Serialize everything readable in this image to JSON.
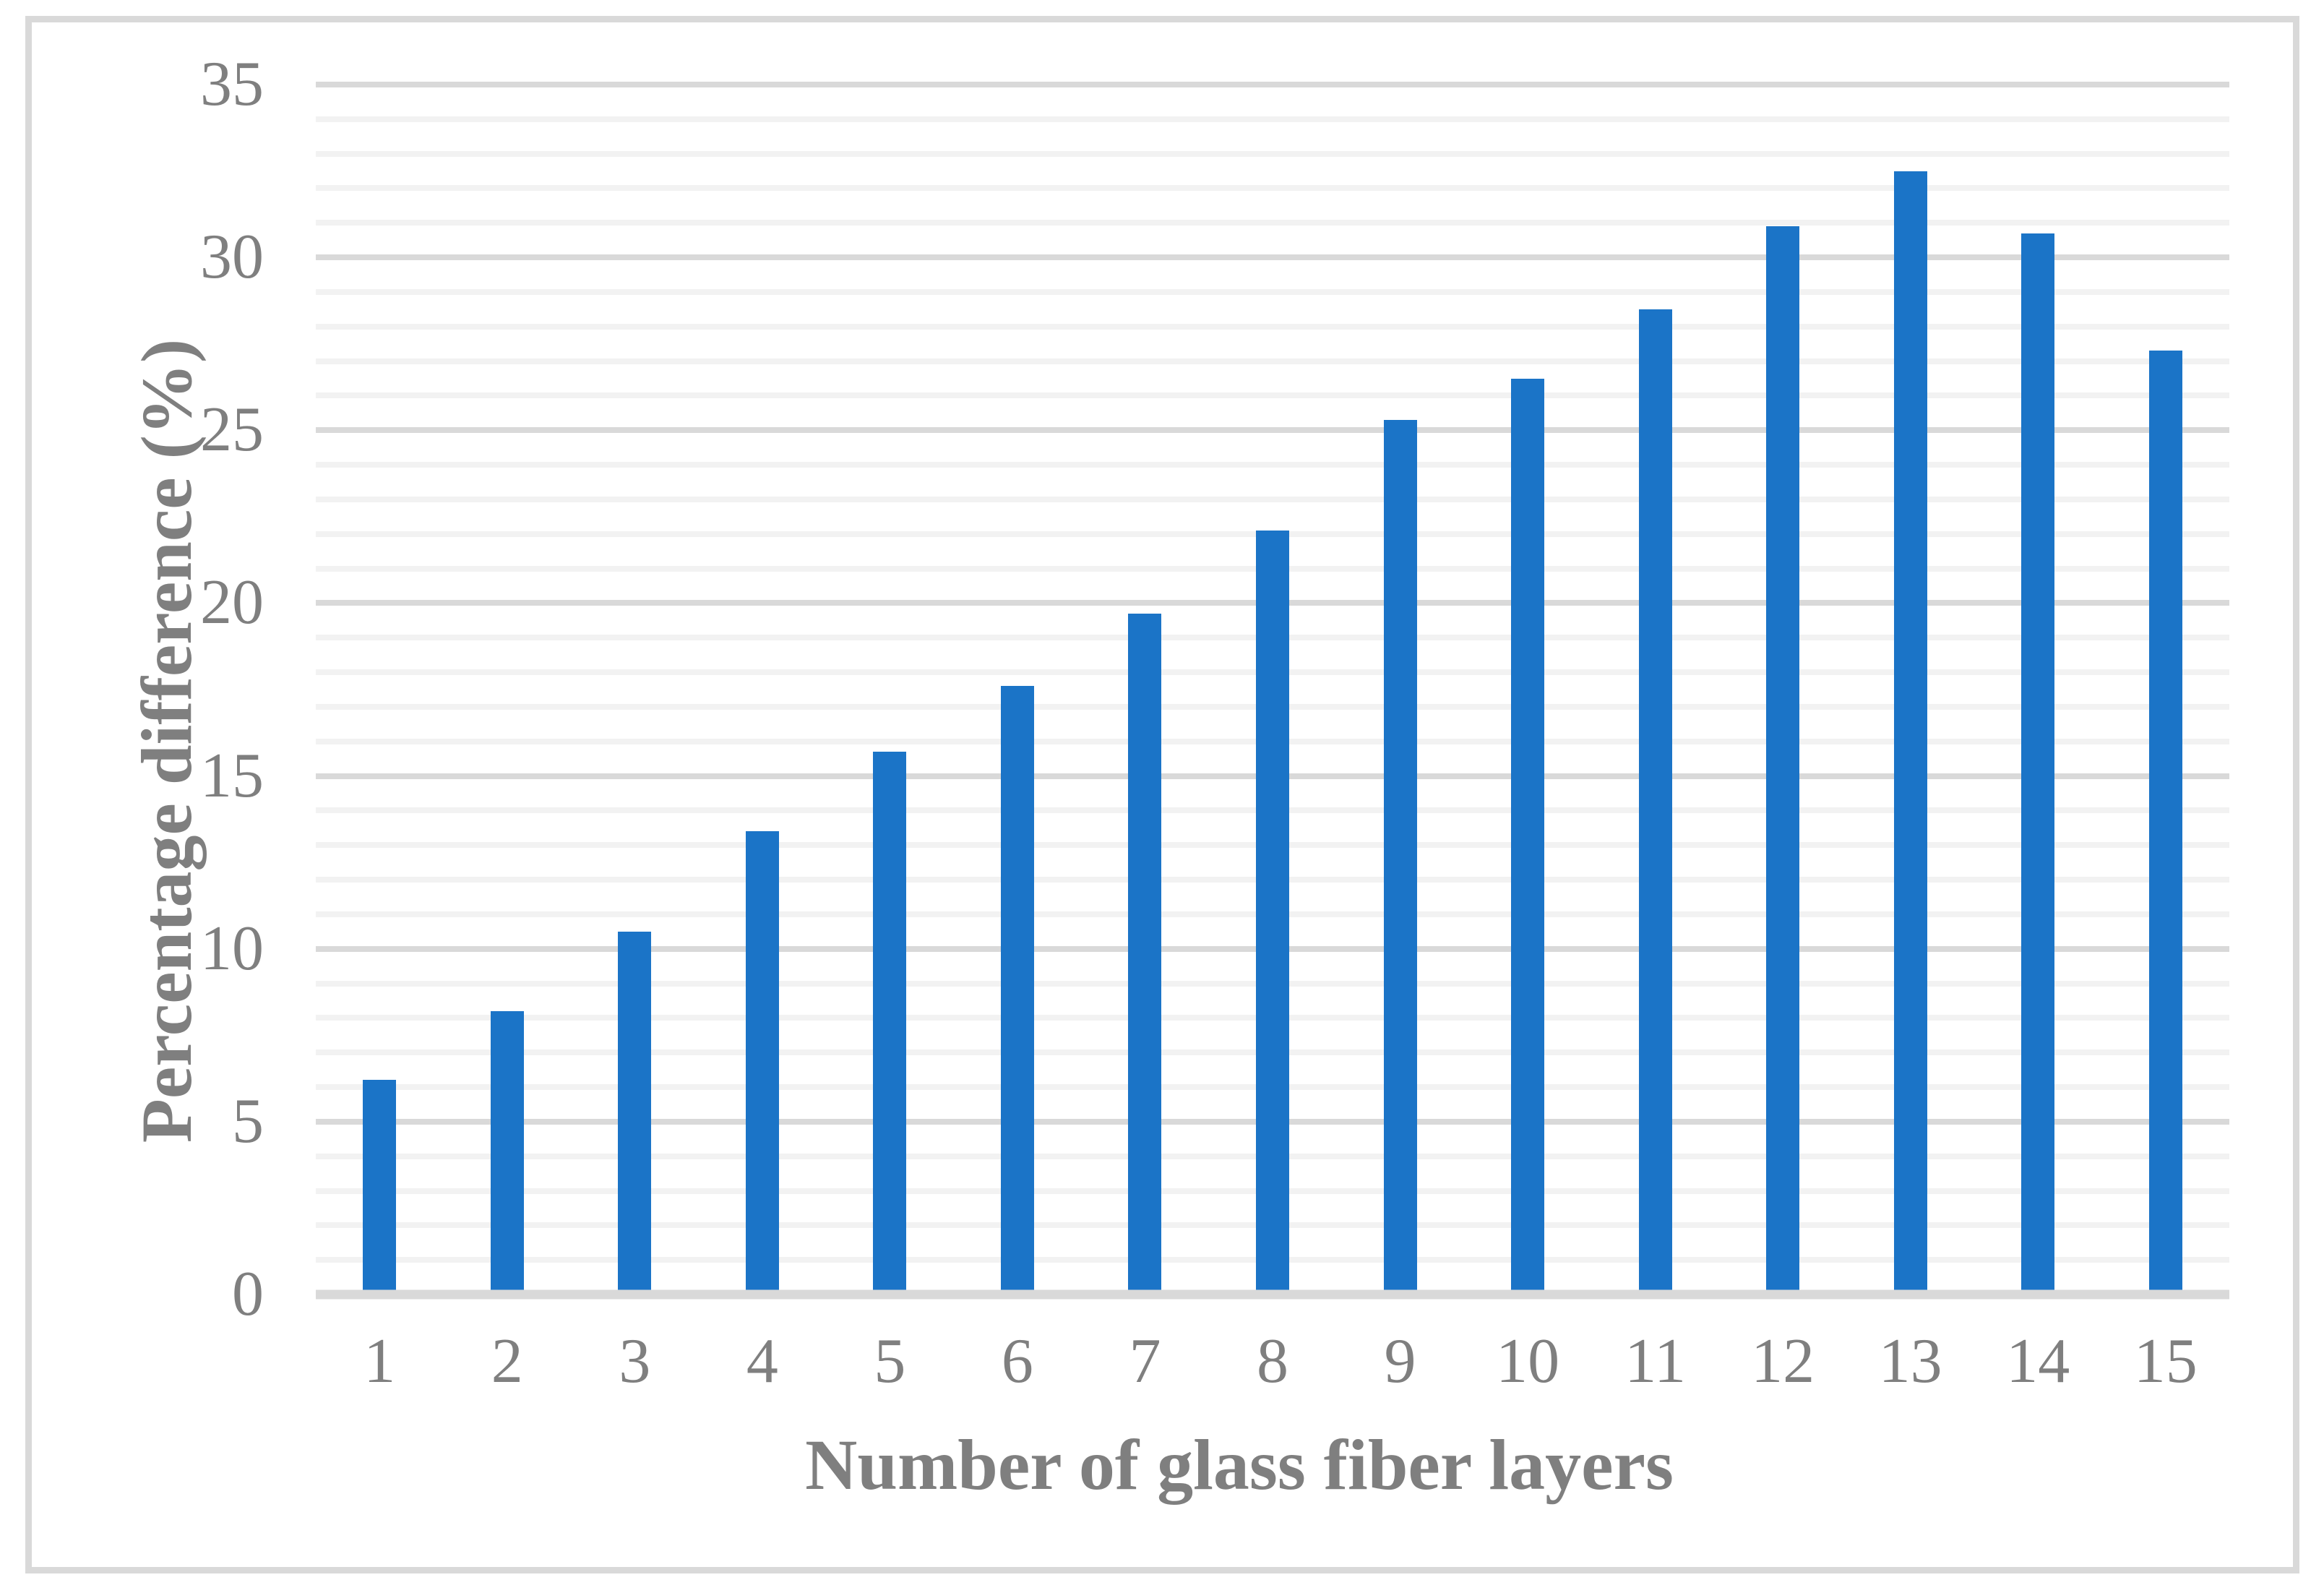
{
  "chart_data": {
    "type": "bar",
    "categories": [
      "1",
      "2",
      "3",
      "4",
      "5",
      "6",
      "7",
      "8",
      "9",
      "10",
      "11",
      "12",
      "13",
      "14",
      "15"
    ],
    "values": [
      6.2,
      8.2,
      10.5,
      13.4,
      15.7,
      17.6,
      19.7,
      22.1,
      25.3,
      26.5,
      28.5,
      30.9,
      32.5,
      30.7,
      27.3
    ],
    "xlabel": "Number of glass fiber layers",
    "ylabel": "Percentage difference (%)",
    "ylim": [
      0,
      35
    ],
    "y_ticks": [
      "0",
      "5",
      "10",
      "15",
      "20",
      "25",
      "30",
      "35"
    ],
    "y_tick_step": 5,
    "y_minor_gridline_step": 1,
    "grid": "horizontal minor and major lines, major every 5 units",
    "legend_position": "none"
  },
  "colors": {
    "bar": "#1B74C7",
    "grid_minor": "#F2F2F2",
    "grid_major": "#D9D9D9",
    "axis_line": "#D9D9D9",
    "frame_border": "#D9D9D9",
    "text": "#7F7F7F",
    "background": "#FFFFFF"
  }
}
